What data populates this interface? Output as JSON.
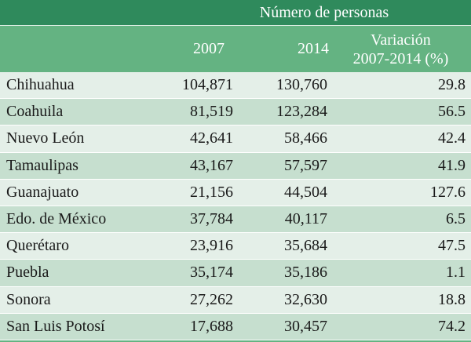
{
  "header": {
    "group_label": "Número de personas",
    "col_2007": "2007",
    "col_2014": "2014",
    "col_var_line1": "Variación",
    "col_var_line2": "2007-2014 (%)"
  },
  "rows": [
    {
      "state": "Chihuahua",
      "v2007": "104,871",
      "v2014": "130,760",
      "var": "29.8"
    },
    {
      "state": "Coahuila",
      "v2007": "81,519",
      "v2014": "123,284",
      "var": "56.5"
    },
    {
      "state": "Nuevo León",
      "v2007": "42,641",
      "v2014": "58,466",
      "var": "42.4"
    },
    {
      "state": "Tamaulipas",
      "v2007": "43,167",
      "v2014": "57,597",
      "var": "41.9"
    },
    {
      "state": "Guanajuato",
      "v2007": "21,156",
      "v2014": "44,504",
      "var": "127.6"
    },
    {
      "state": "Edo. de México",
      "v2007": "37,784",
      "v2014": "40,117",
      "var": "6.5"
    },
    {
      "state": "Querétaro",
      "v2007": "23,916",
      "v2014": "35,684",
      "var": "47.5"
    },
    {
      "state": "Puebla",
      "v2007": "35,174",
      "v2014": "35,186",
      "var": "1.1"
    },
    {
      "state": "Sonora",
      "v2007": "27,262",
      "v2014": "32,630",
      "var": "18.8"
    },
    {
      "state": "San Luis Potosí",
      "v2007": "17,688",
      "v2014": "30,457",
      "var": "74.2"
    }
  ]
}
